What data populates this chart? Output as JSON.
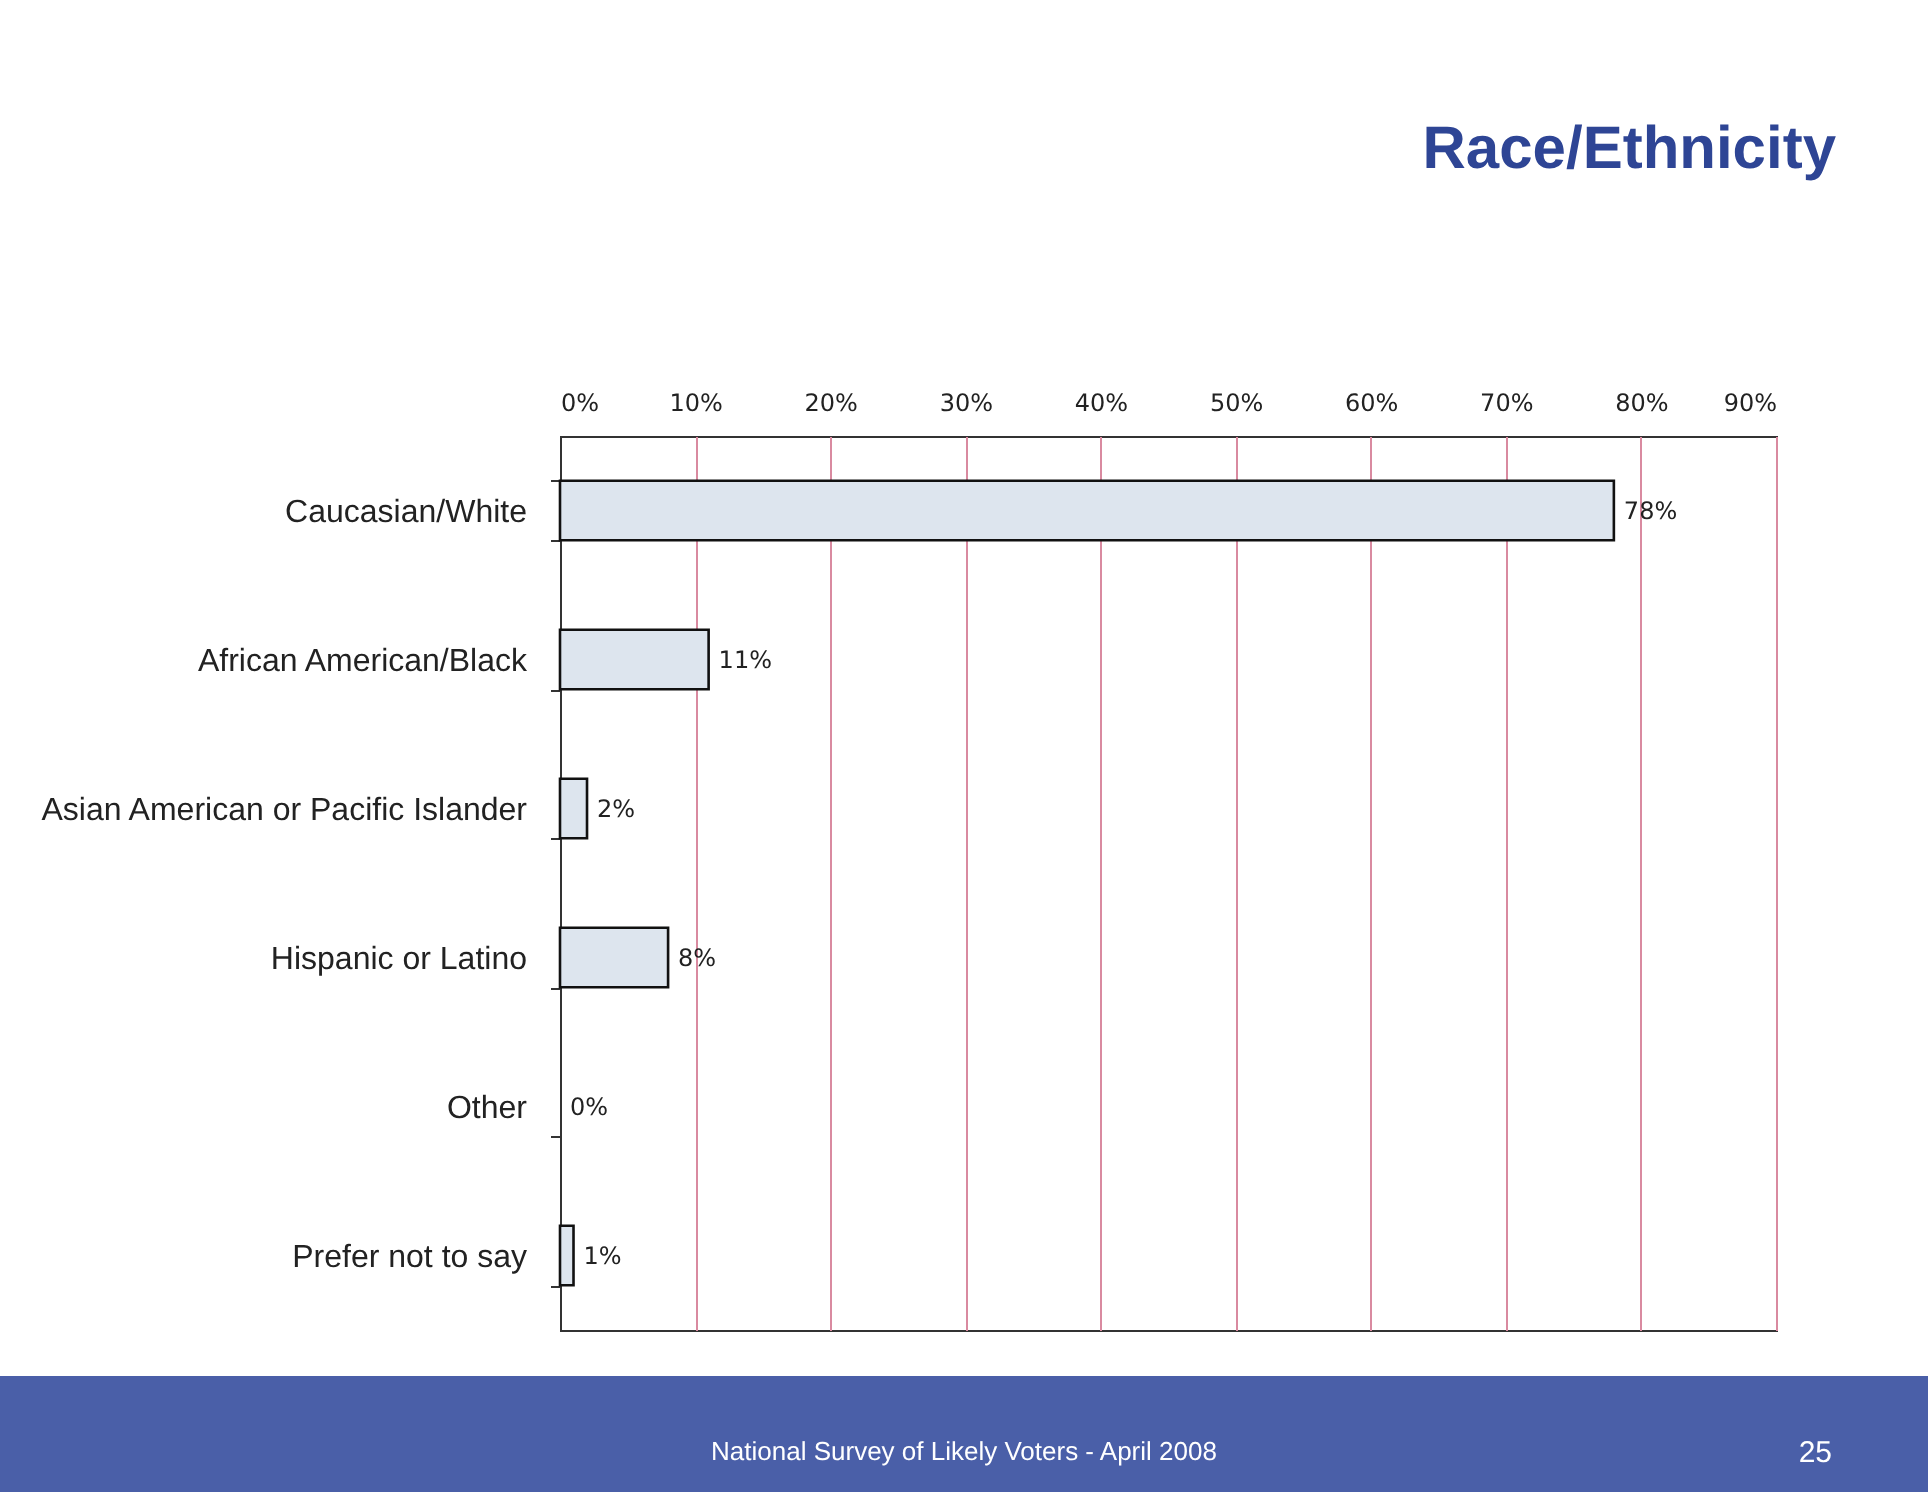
{
  "chart_data": {
    "type": "bar",
    "orientation": "horizontal",
    "title": "Race/Ethnicity",
    "categories": [
      "Caucasian/White",
      "African American/Black",
      "Asian American or Pacific Islander",
      "Hispanic or Latino",
      "Other",
      "Prefer not to say"
    ],
    "values": [
      78,
      11,
      2,
      8,
      0,
      1
    ],
    "value_labels": [
      "78%",
      "11%",
      "2%",
      "8%",
      "0%",
      "1%"
    ],
    "color": "#dde5ee",
    "xlim": [
      0,
      90
    ],
    "xticks": [
      {
        "value": 0,
        "label": "0%"
      },
      {
        "value": 10,
        "label": "10%"
      },
      {
        "value": 20,
        "label": "20%"
      },
      {
        "value": 30,
        "label": "30%"
      },
      {
        "value": 40,
        "label": "40%"
      },
      {
        "value": 50,
        "label": "50%"
      },
      {
        "value": 60,
        "label": "60%"
      },
      {
        "value": 70,
        "label": "70%"
      },
      {
        "value": 80,
        "label": "80%"
      },
      {
        "value": 90,
        "label": "90%"
      }
    ],
    "grid": "x",
    "annotations": [
      "National Survey of Likely Voters - April 2008",
      "25"
    ]
  }
}
